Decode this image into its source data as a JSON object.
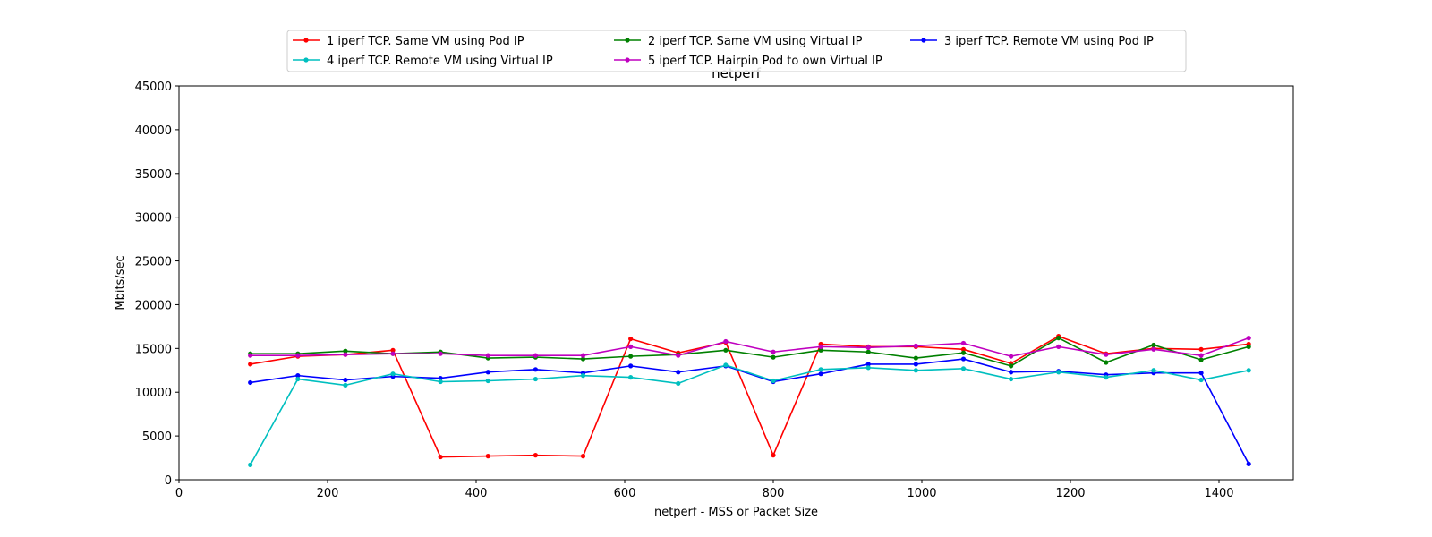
{
  "chart_data": {
    "type": "line",
    "title": "netperf",
    "xlabel": "netperf - MSS or Packet Size",
    "ylabel": "Mbits/sec",
    "xlim": [
      0,
      1500
    ],
    "ylim": [
      0,
      45000
    ],
    "xticks": [
      0,
      200,
      400,
      600,
      800,
      1000,
      1200,
      1400
    ],
    "yticks": [
      0,
      5000,
      10000,
      15000,
      20000,
      25000,
      30000,
      35000,
      40000,
      45000
    ],
    "grid": false,
    "legend_position": "top-center",
    "legend_columns": 3,
    "x": [
      96,
      160,
      224,
      288,
      352,
      416,
      480,
      544,
      608,
      672,
      736,
      800,
      864,
      928,
      992,
      1056,
      1120,
      1184,
      1248,
      1312,
      1376,
      1440
    ],
    "series": [
      {
        "name": "1 iperf TCP. Same VM using Pod IP",
        "color": "#ff0000",
        "values": [
          13200,
          14100,
          14300,
          14800,
          2600,
          2700,
          2800,
          2700,
          16100,
          14500,
          15700,
          2800,
          15500,
          15200,
          15200,
          14900,
          13300,
          16400,
          14400,
          15000,
          14900,
          15500
        ]
      },
      {
        "name": "2 iperf TCP. Same VM using Virtual IP",
        "color": "#008000",
        "values": [
          14400,
          14400,
          14700,
          14400,
          14600,
          13900,
          14000,
          13800,
          14100,
          14300,
          14800,
          14000,
          14800,
          14600,
          13900,
          14500,
          13000,
          16200,
          13400,
          15400,
          13700,
          15200
        ]
      },
      {
        "name": "3 iperf TCP. Remote VM using Pod IP",
        "color": "#0000ff",
        "values": [
          11100,
          11900,
          11400,
          11800,
          11600,
          12300,
          12600,
          12200,
          13000,
          12300,
          13000,
          11200,
          12100,
          13200,
          13200,
          13800,
          12300,
          12400,
          12000,
          12200,
          12200,
          1800
        ]
      },
      {
        "name": "4 iperf TCP. Remote VM using Virtual IP",
        "color": "#00bfbf",
        "values": [
          1700,
          11500,
          10800,
          12100,
          11200,
          11300,
          11500,
          11900,
          11700,
          11000,
          13100,
          11300,
          12600,
          12800,
          12500,
          12700,
          11500,
          12300,
          11700,
          12500,
          11400,
          12500
        ]
      },
      {
        "name": "5 iperf TCP. Hairpin Pod to own Virtual IP",
        "color": "#bf00bf",
        "values": [
          14200,
          14200,
          14300,
          14400,
          14400,
          14200,
          14200,
          14200,
          15200,
          14200,
          15800,
          14600,
          15200,
          15100,
          15300,
          15600,
          14100,
          15200,
          14300,
          14900,
          14200,
          16200
        ]
      }
    ]
  }
}
